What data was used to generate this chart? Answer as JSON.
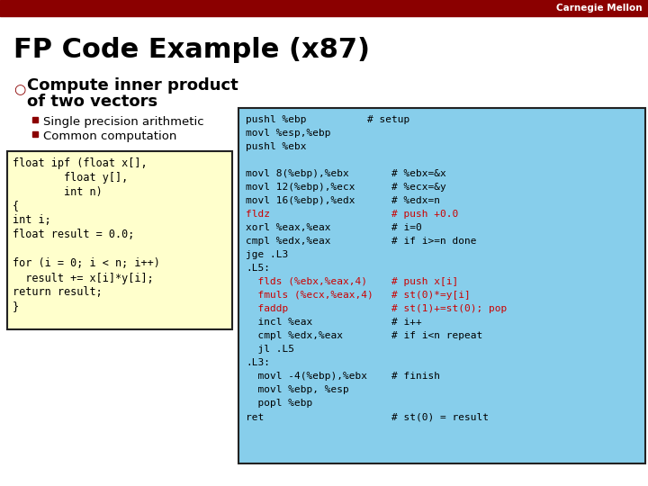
{
  "title": "FP Code Example (x87)",
  "header_bg": "#8B0000",
  "header_text": "Carnegie Mellon",
  "header_text_color": "#ffffff",
  "slide_bg": "#ffffff",
  "title_color": "#000000",
  "title_fontsize": 22,
  "bullet_color": "#000000",
  "bullet_marker_color": "#8B0000",
  "sub_bullets": [
    "Single precision arithmetic",
    "Common computation"
  ],
  "sub_bullet_color": "#000000",
  "sub_bullet_marker_color": "#8B0000",
  "c_code_bg": "#ffffcc",
  "c_code_border": "#222222",
  "c_code_lines": [
    "float ipf (float x[],",
    "        float y[],",
    "        int n)",
    "{",
    "int i;",
    "float result = 0.0;",
    "",
    "for (i = 0; i < n; i++)",
    "  result += x[i]*y[i];",
    "return result;",
    "}"
  ],
  "c_code_color": "#000000",
  "asm_code_bg": "#87ceeb",
  "asm_code_border": "#222222",
  "asm_black_color": "#000000",
  "asm_red_color": "#cc0000",
  "asm_all": [
    [
      "pushl %ebp          # setup",
      "black"
    ],
    [
      "movl %esp,%ebp",
      "black"
    ],
    [
      "pushl %ebx",
      "black"
    ],
    [
      "",
      "black"
    ],
    [
      "movl 8(%ebp),%ebx       # %ebx=&x",
      "black"
    ],
    [
      "movl 12(%ebp),%ecx      # %ecx=&y",
      "black"
    ],
    [
      "movl 16(%ebp),%edx      # %edx=n",
      "black"
    ],
    [
      "fldz                    # push +0.0",
      "red"
    ],
    [
      "xorl %eax,%eax          # i=0",
      "black"
    ],
    [
      "cmpl %edx,%eax          # if i>=n done",
      "black"
    ],
    [
      "jge .L3",
      "black"
    ],
    [
      ".L5:",
      "black"
    ],
    [
      "  flds (%ebx,%eax,4)    # push x[i]",
      "red"
    ],
    [
      "  fmuls (%ecx,%eax,4)   # st(0)*=y[i]",
      "red"
    ],
    [
      "  faddp                 # st(1)+=st(0); pop",
      "red"
    ],
    [
      "  incl %eax             # i++",
      "black"
    ],
    [
      "  cmpl %edx,%eax        # if i<n repeat",
      "black"
    ],
    [
      "  jl .L5",
      "black"
    ],
    [
      ".L3:",
      "black"
    ],
    [
      "  movl -4(%ebp),%ebx    # finish",
      "black"
    ],
    [
      "  movl %ebp, %esp",
      "black"
    ],
    [
      "  popl %ebp",
      "black"
    ],
    [
      "ret                     # st(0) = result",
      "black"
    ]
  ]
}
